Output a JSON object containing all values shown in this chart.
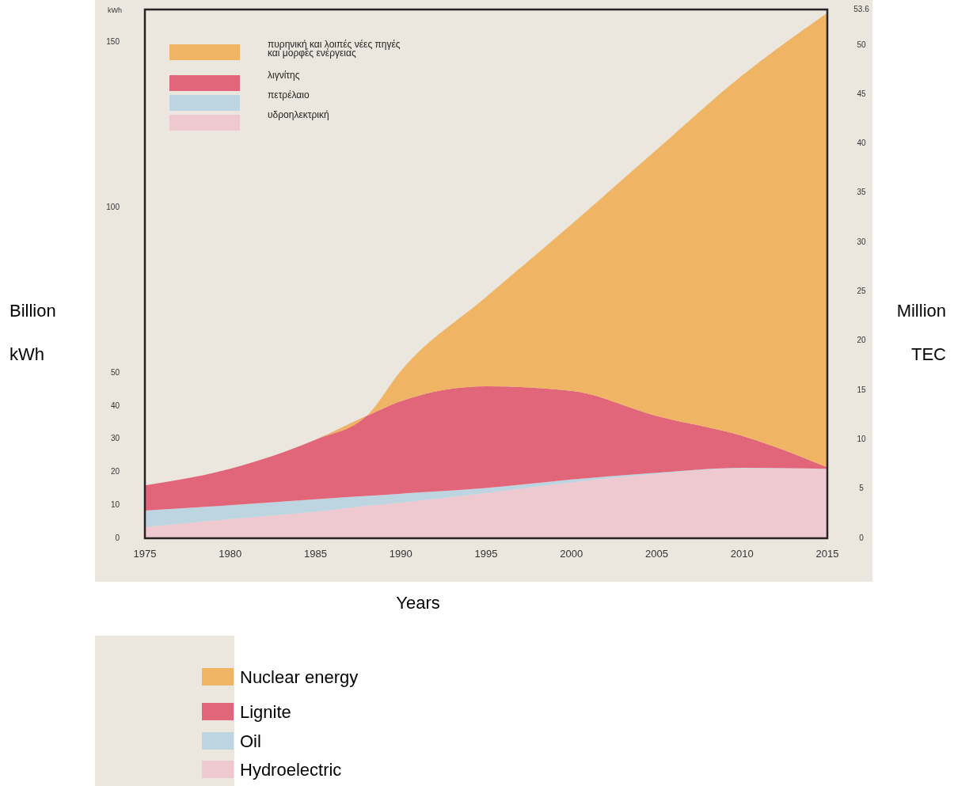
{
  "chart_data": {
    "type": "area",
    "stacked": true,
    "xlabel": "Years",
    "ylabel": "Billion kWh",
    "y2label": "Million TEC",
    "x": [
      1975,
      1980,
      1985,
      1988,
      1990,
      1995,
      2000,
      2005,
      2010,
      2015
    ],
    "xlim": [
      1975,
      2015
    ],
    "xticks": [
      1975,
      1980,
      1985,
      1990,
      1995,
      2000,
      2005,
      2010,
      2015
    ],
    "ylim": [
      0,
      160
    ],
    "yticks": [
      0,
      10,
      20,
      30,
      40,
      50,
      100,
      150
    ],
    "y2lim": [
      0,
      53.6
    ],
    "y2ticks": [
      0,
      5,
      10,
      15,
      20,
      25,
      30,
      35,
      40,
      45,
      50,
      53.6
    ],
    "series": [
      {
        "name": "Hydroelectric",
        "color": "#efc9d0",
        "values": [
          3.4,
          5.8,
          8,
          9.8,
          10.8,
          13.7,
          16.9,
          19.5,
          21.2,
          21
        ]
      },
      {
        "name": "Oil",
        "color": "#bcd5e0",
        "values": [
          5,
          4.2,
          3.8,
          3,
          2.7,
          1.5,
          0.9,
          0.3,
          0.1,
          0
        ]
      },
      {
        "name": "Lignite",
        "color": "#e2667a",
        "values": [
          7.6,
          11,
          18,
          24.2,
          28,
          30.8,
          26.8,
          17.2,
          9.7,
          0.5
        ]
      },
      {
        "name": "Nuclear energy",
        "color": "#efb464",
        "values": [
          0,
          0,
          0,
          0,
          9.1,
          27,
          50.4,
          80.6,
          109,
          137.5
        ]
      }
    ],
    "legend": "bottom",
    "grid": false,
    "annotations": [
      "kWh",
      "πυρηνική και λοιπές νέες πηγές\nκαι μορφές ενέργειας",
      "λιγνίτης",
      "πετρέλαιο",
      "υδροηλεκτρική"
    ]
  }
}
